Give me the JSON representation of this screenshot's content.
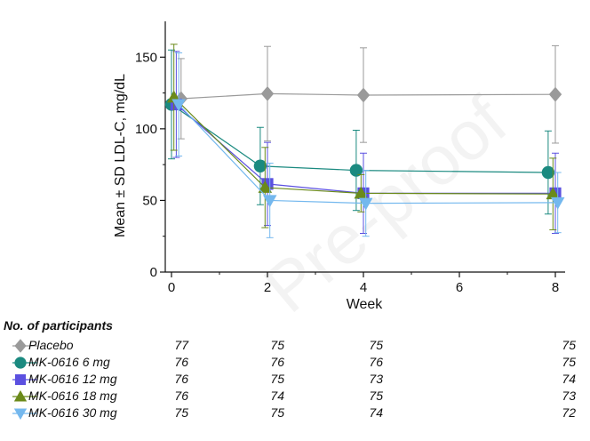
{
  "chart_data": {
    "type": "line",
    "xlabel": "Week",
    "ylabel": "Mean ± SD LDL-C, mg/dL",
    "xlim": [
      -0.2,
      8.2
    ],
    "ylim": [
      0,
      175
    ],
    "xticks": [
      0,
      2,
      4,
      6,
      8
    ],
    "yticks": [
      0,
      50,
      100,
      150
    ],
    "grid": false,
    "series": [
      {
        "name": "Placebo",
        "color": "#9a9a9a",
        "marker": "diamond",
        "x": [
          0.2,
          2,
          4,
          8
        ],
        "y": [
          121,
          124.5,
          123.5,
          124
        ],
        "sd": [
          28,
          33,
          33,
          34
        ]
      },
      {
        "name": "MK-0616 6 mg",
        "color": "#1b8a80",
        "marker": "circle",
        "x": [
          0,
          1.85,
          3.85,
          7.85
        ],
        "y": [
          117,
          74,
          71,
          69.5
        ],
        "sd": [
          38,
          27,
          28,
          29
        ]
      },
      {
        "name": "MK-0616 12 mg",
        "color": "#5b50e0",
        "marker": "square",
        "x": [
          0.1,
          2,
          4,
          8
        ],
        "y": [
          117,
          61.5,
          55,
          55
        ],
        "sd": [
          37,
          29,
          28,
          28
        ]
      },
      {
        "name": "MK-0616 18 mg",
        "color": "#6b8a1a",
        "marker": "triangle-up",
        "x": [
          0.05,
          1.95,
          3.95,
          7.95
        ],
        "y": [
          122,
          59,
          55,
          54.5
        ],
        "sd": [
          37,
          28,
          13,
          25
        ]
      },
      {
        "name": "MK-0616 30 mg",
        "color": "#74b8ee",
        "marker": "triangle-down",
        "x": [
          0.15,
          2.05,
          4.05,
          8.05
        ],
        "y": [
          117,
          50,
          48,
          48.5
        ],
        "sd": [
          36,
          26,
          23,
          21
        ]
      }
    ]
  },
  "participants": {
    "title": "No. of participants",
    "rows": [
      {
        "name": "Placebo",
        "counts": [
          "77",
          "75",
          "75",
          "75"
        ]
      },
      {
        "name": "MK-0616 6 mg",
        "counts": [
          "76",
          "76",
          "76",
          "75"
        ]
      },
      {
        "name": "MK-0616 12 mg",
        "counts": [
          "76",
          "75",
          "73",
          "74"
        ]
      },
      {
        "name": "MK-0616 18 mg",
        "counts": [
          "76",
          "74",
          "75",
          "73"
        ]
      },
      {
        "name": "MK-0616 30 mg",
        "counts": [
          "75",
          "75",
          "74",
          "72"
        ]
      }
    ]
  },
  "watermark": "Pre-proof"
}
